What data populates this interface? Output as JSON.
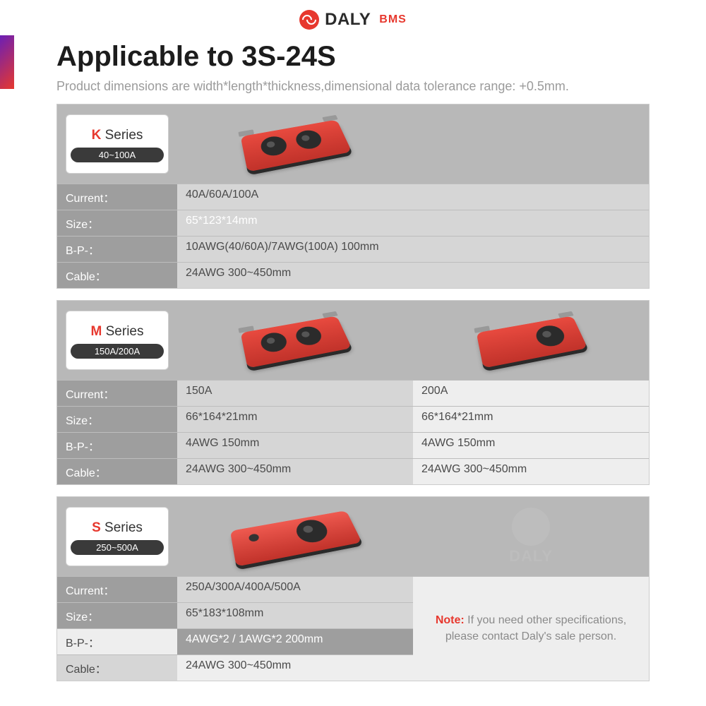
{
  "brand": {
    "name": "DALY",
    "sub": "BMS"
  },
  "title": "Applicable to 3S-24S",
  "subtitle": "Product dimensions are width*length*thickness,dimensional data tolerance range: +0.5mm.",
  "colors": {
    "accent": "#e7382e",
    "badge_bg": "#3a3a3a",
    "header_bg": "#b8b8b8",
    "label_bg": "#9e9e9e",
    "valA_bg": "#d6d6d6",
    "valB_bg": "#eeeeee"
  },
  "row_labels": [
    "Current：",
    "Size：",
    "B-P-：",
    "Cable："
  ],
  "series": [
    {
      "letter": "K",
      "name": "Series",
      "range": "40~100A",
      "columns": 1,
      "variants": [
        {
          "current": "40A/60A/100A",
          "size": "65*123*14mm",
          "bp": "10AWG(40/60A)/7AWG(100A)  100mm",
          "cable": "24AWG   300~450mm"
        }
      ]
    },
    {
      "letter": "M",
      "name": "Series",
      "range": "150A/200A",
      "columns": 2,
      "variants": [
        {
          "current": "150A",
          "size": "66*164*21mm",
          "bp": "4AWG   150mm",
          "cable": "24AWG   300~450mm"
        },
        {
          "current": "200A",
          "size": "66*164*21mm",
          "bp": "4AWG   150mm",
          "cable": "24AWG   300~450mm"
        }
      ]
    },
    {
      "letter": "S",
      "name": "Series",
      "range": "250~500A",
      "columns": 2,
      "note_label": "Note:",
      "note_text": " If you need other specifications, please contact Daly's sale person.",
      "watermark": "DALY",
      "variants": [
        {
          "current": "250A/300A/400A/500A",
          "size": "65*183*108mm",
          "bp": "4AWG*2 / 1AWG*2 200mm",
          "cable": "24AWG   300~450mm"
        }
      ]
    }
  ]
}
